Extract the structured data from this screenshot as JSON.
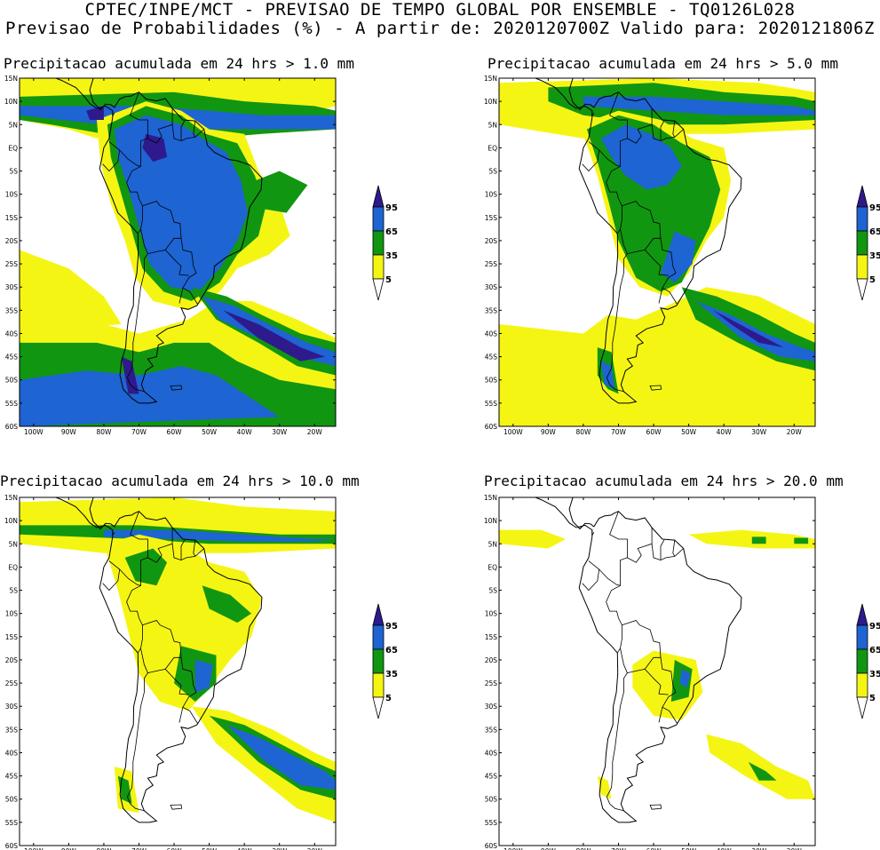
{
  "header": {
    "line1": "CPTEC/INPE/MCT - PREVISAO DE TEMPO GLOBAL POR ENSEMBLE - TQ0126L028",
    "line2": "Previsao de Probabilidades (%) -  A partir de: 2020120700Z  Valido para: 2020121806Z"
  },
  "axes": {
    "lat_labels": [
      "15N",
      "10N",
      "5N",
      "EQ",
      "5S",
      "10S",
      "15S",
      "20S",
      "25S",
      "30S",
      "35S",
      "40S",
      "45S",
      "50S",
      "55S",
      "60S"
    ],
    "lon_labels": [
      "100W",
      "90W",
      "80W",
      "70W",
      "60W",
      "50W",
      "40W",
      "30W",
      "20W"
    ]
  },
  "legend": {
    "levels": [
      "95",
      "65",
      "35",
      "5"
    ],
    "colors": {
      "c95": "#2e1a8c",
      "c65": "#1e64d2",
      "c35": "#119611",
      "c5": "#f5f514"
    }
  },
  "panels": [
    {
      "title": "Precipitacao acumulada em 24 hrs > 1.0 mm"
    },
    {
      "title": "Precipitacao acumulada em 24 hrs > 5.0 mm"
    },
    {
      "title": "Precipitacao acumulada em 24 hrs > 10.0 mm"
    },
    {
      "title": "Precipitacao acumulada em 24 hrs > 20.0 mm"
    }
  ]
}
